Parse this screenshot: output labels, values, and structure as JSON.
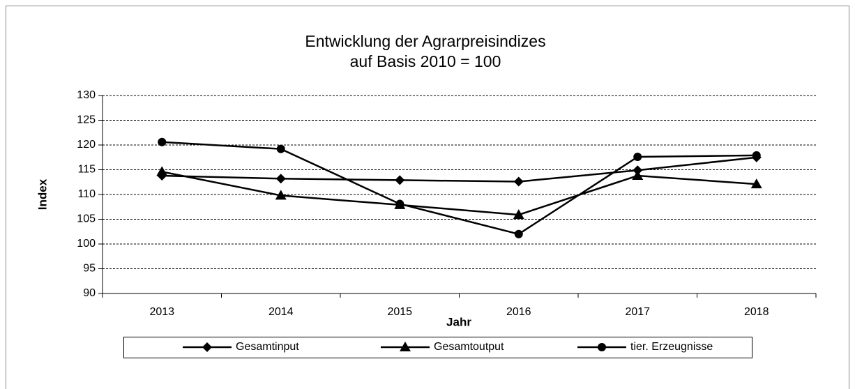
{
  "chart_data": {
    "type": "line",
    "title": "Entwicklung der Agrarpreisindizes",
    "subtitle": "auf Basis 2010 = 100",
    "x_label": "Jahr",
    "y_label": "Index",
    "categories": [
      "2013",
      "2014",
      "2015",
      "2016",
      "2017",
      "2018"
    ],
    "series": [
      {
        "name": "Gesamtinput",
        "color": "#000000",
        "marker": "diamond",
        "values": [
          113.8,
          113.2,
          112.9,
          112.6,
          114.9,
          117.5
        ]
      },
      {
        "name": "Gesamtoutput",
        "color": "#000000",
        "marker": "triangle",
        "values": [
          114.6,
          109.8,
          107.9,
          105.9,
          113.8,
          112.1
        ]
      },
      {
        "name": "tier. Erzeugnisse",
        "color": "#000000",
        "marker": "circle",
        "values": [
          120.6,
          119.2,
          108.1,
          102.0,
          117.6,
          117.9
        ]
      }
    ],
    "ylim": [
      90,
      130
    ],
    "yticks": [
      90,
      95,
      100,
      105,
      110,
      115,
      120,
      125,
      130
    ],
    "grid": true,
    "legend": "bottom"
  }
}
